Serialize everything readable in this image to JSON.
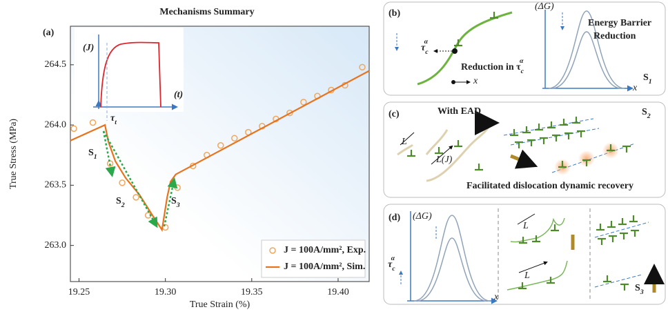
{
  "chart_data": {
    "type": "line",
    "title": "Mechanisms Summary",
    "panel_label": "(a)",
    "x_label": "True Strain (%)",
    "y_label": "True Stress (MPa)",
    "xlim": [
      19.245,
      19.418
    ],
    "ylim": [
      262.7,
      264.82
    ],
    "xticks": [
      19.25,
      {
        "value": 19.3,
        "label": "19.30"
      },
      19.35,
      {
        "value": 19.4,
        "label": "19.40"
      }
    ],
    "yticks": [
      {
        "value": 263,
        "label": "263.0"
      },
      263.5,
      {
        "value": 264,
        "label": "264.0"
      },
      264.5
    ],
    "legend": "lower right",
    "series": [
      {
        "name": "J = 100A/mm², Exp.",
        "color": "#f2a65a",
        "style": "markers",
        "x": [
          19.247,
          19.258,
          19.268,
          19.275,
          19.283,
          19.29,
          19.3,
          19.307,
          19.316,
          19.324,
          19.332,
          19.34,
          19.348,
          19.356,
          19.364,
          19.372,
          19.38,
          19.388,
          19.396,
          19.404,
          19.414
        ],
        "values": [
          263.97,
          264.02,
          263.68,
          263.52,
          263.4,
          263.25,
          263.15,
          263.48,
          263.66,
          263.75,
          263.83,
          263.89,
          263.94,
          263.99,
          264.05,
          264.1,
          264.19,
          264.24,
          264.29,
          264.33,
          264.48
        ]
      },
      {
        "name": "J = 100A/mm², Sim.",
        "color": "#e8731e",
        "style": "line",
        "x": [
          19.245,
          19.265,
          19.267,
          19.271,
          19.277,
          19.285,
          19.293,
          19.298,
          19.301,
          19.303,
          19.306,
          19.418
        ],
        "values": [
          263.87,
          264.0,
          263.86,
          263.7,
          263.56,
          263.42,
          263.24,
          263.13,
          263.4,
          263.53,
          263.59,
          264.45
        ]
      }
    ],
    "annotations": [
      {
        "base": "S",
        "sub": "1"
      },
      {
        "base": "S",
        "sub": "2"
      },
      {
        "base": "S",
        "sub": "3"
      }
    ],
    "inset": {
      "y_label": "(J)",
      "x_label": "(t)",
      "marker": {
        "base": "τ",
        "sub": "t"
      }
    }
  },
  "panels": {
    "b": {
      "label": "(b)",
      "tau": {
        "base": "τ",
        "sub": "c",
        "sup": "α"
      },
      "reduction": {
        "base": "Reduction in τ",
        "sub": "c",
        "sup": "α"
      },
      "barrier": [
        "Energy Barrier",
        "Reduction"
      ],
      "delta_g": "(ΔG)",
      "axis_x": [
        "x",
        "x"
      ],
      "stage": {
        "base": "S",
        "sub": "1"
      }
    },
    "c": {
      "label": "(c)",
      "ead": "With EAD",
      "lengths": [
        "L",
        "L(J)"
      ],
      "recovery": "Facilitated dislocation dynamic recovery",
      "stage": {
        "base": "S",
        "sub": "2"
      }
    },
    "d": {
      "label": "(d)",
      "delta_g": "(ΔG)",
      "tau": {
        "base": "τ",
        "sub": "c",
        "sup": "α"
      },
      "lengths": [
        "L",
        "L"
      ],
      "axis_x": "x",
      "stage": {
        "base": "S",
        "sub": "3"
      }
    }
  }
}
